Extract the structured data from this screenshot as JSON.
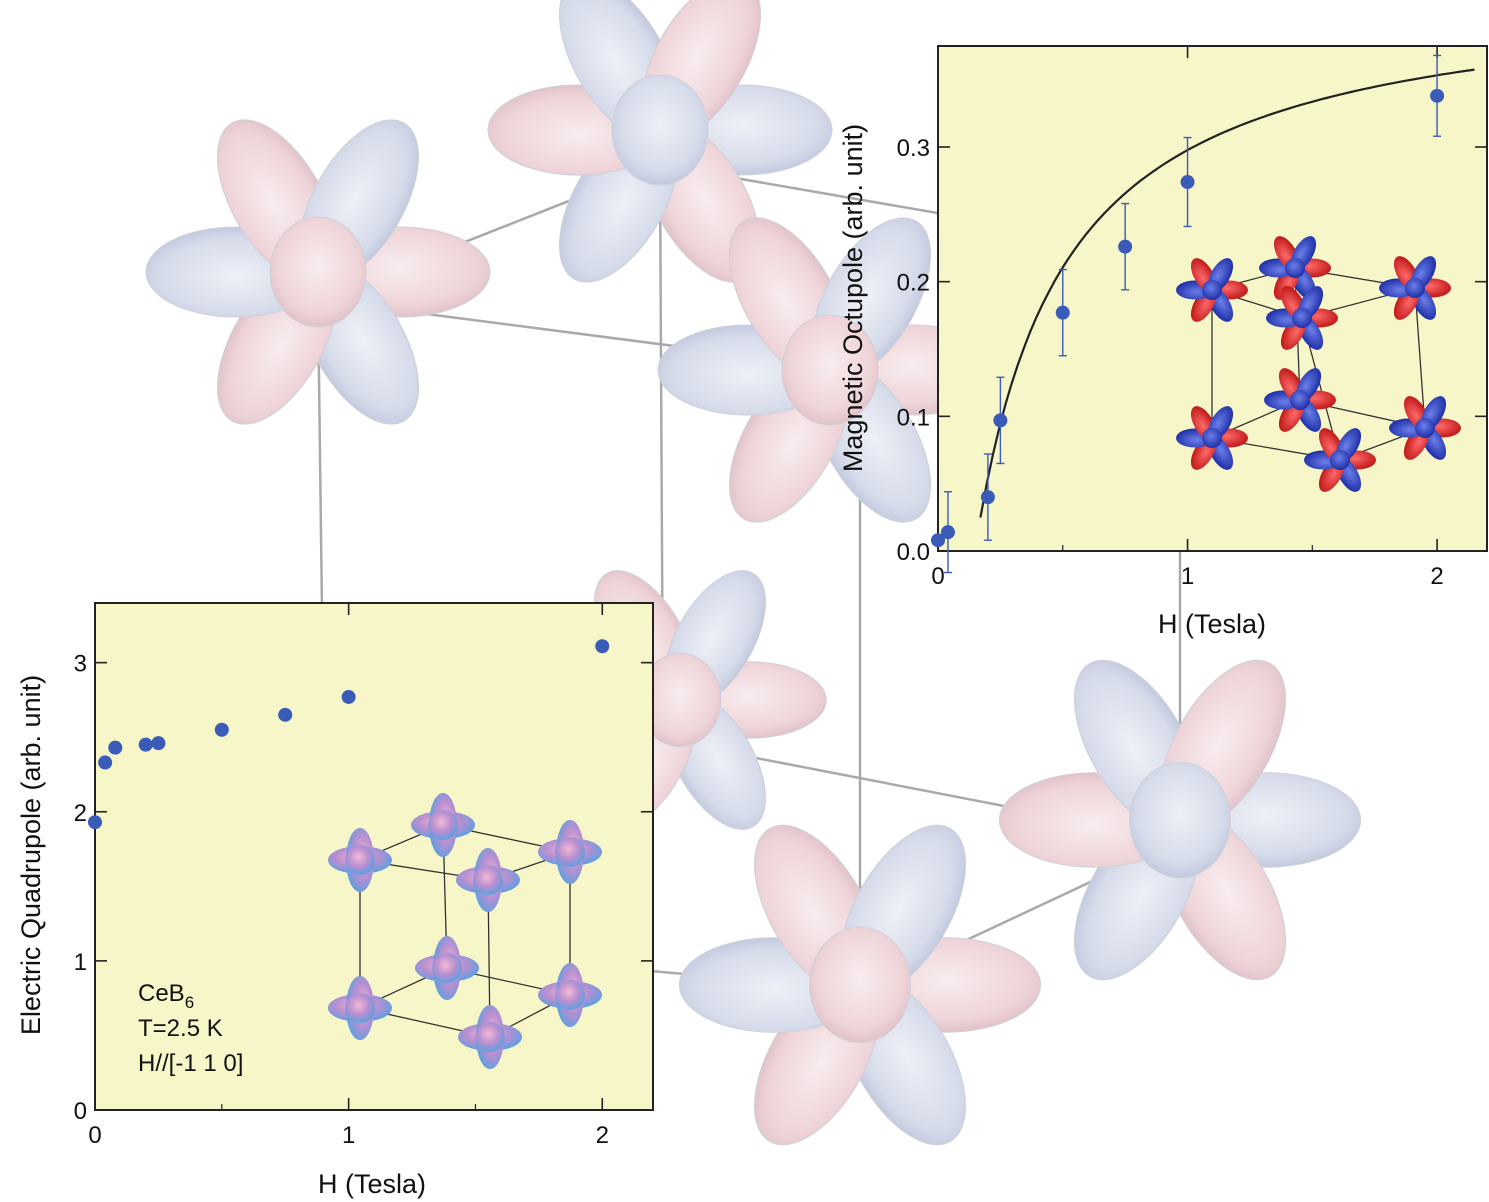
{
  "chart_data": [
    {
      "type": "scatter",
      "xlabel": "H  (Tesla)",
      "ylabel": "Electric Quadrupole   (arb. unit)",
      "xlim": [
        0,
        2.2
      ],
      "ylim": [
        0,
        3.4
      ],
      "xticks": [
        "0",
        "1",
        "2"
      ],
      "yticks": [
        "0",
        "1",
        "2",
        "3"
      ],
      "series": [
        {
          "x": [
            0.0,
            0.04,
            0.08,
            0.2,
            0.25,
            0.5,
            0.75,
            1.0,
            2.0
          ],
          "y": [
            1.93,
            2.33,
            2.43,
            2.45,
            2.46,
            2.55,
            2.65,
            2.77,
            3.11
          ]
        }
      ],
      "annotation": {
        "compound": "CeB",
        "subscript": "6",
        "temperature": "T=2.5 K",
        "field_dir": "H//[-1 1 0]"
      },
      "background": "#f6f6c8",
      "marker_color": "#3a5cb8"
    },
    {
      "type": "scatter",
      "xlabel": "H  (Tesla)",
      "ylabel": "Magnetic Octupole   (arb. unit)",
      "xlim": [
        0,
        2.2
      ],
      "ylim": [
        0,
        0.375
      ],
      "xticks": [
        "0",
        "1",
        "2"
      ],
      "yticks": [
        "0.0",
        "0.1",
        "0.2",
        "0.3"
      ],
      "series": [
        {
          "x": [
            0.0,
            0.04,
            0.2,
            0.25,
            0.5,
            0.75,
            1.0,
            2.0
          ],
          "y": [
            0.008,
            0.014,
            0.04,
            0.097,
            0.177,
            0.226,
            0.274,
            0.338
          ],
          "err": [
            0.0,
            0.03,
            0.032,
            0.032,
            0.032,
            0.032,
            0.033,
            0.03
          ]
        }
      ],
      "fit_curve": {
        "x_start": 0.17,
        "x_end": 2.15
      },
      "background": "#f6f6c8",
      "marker_color": "#3a5cb8",
      "curve_color": "#222222"
    }
  ]
}
